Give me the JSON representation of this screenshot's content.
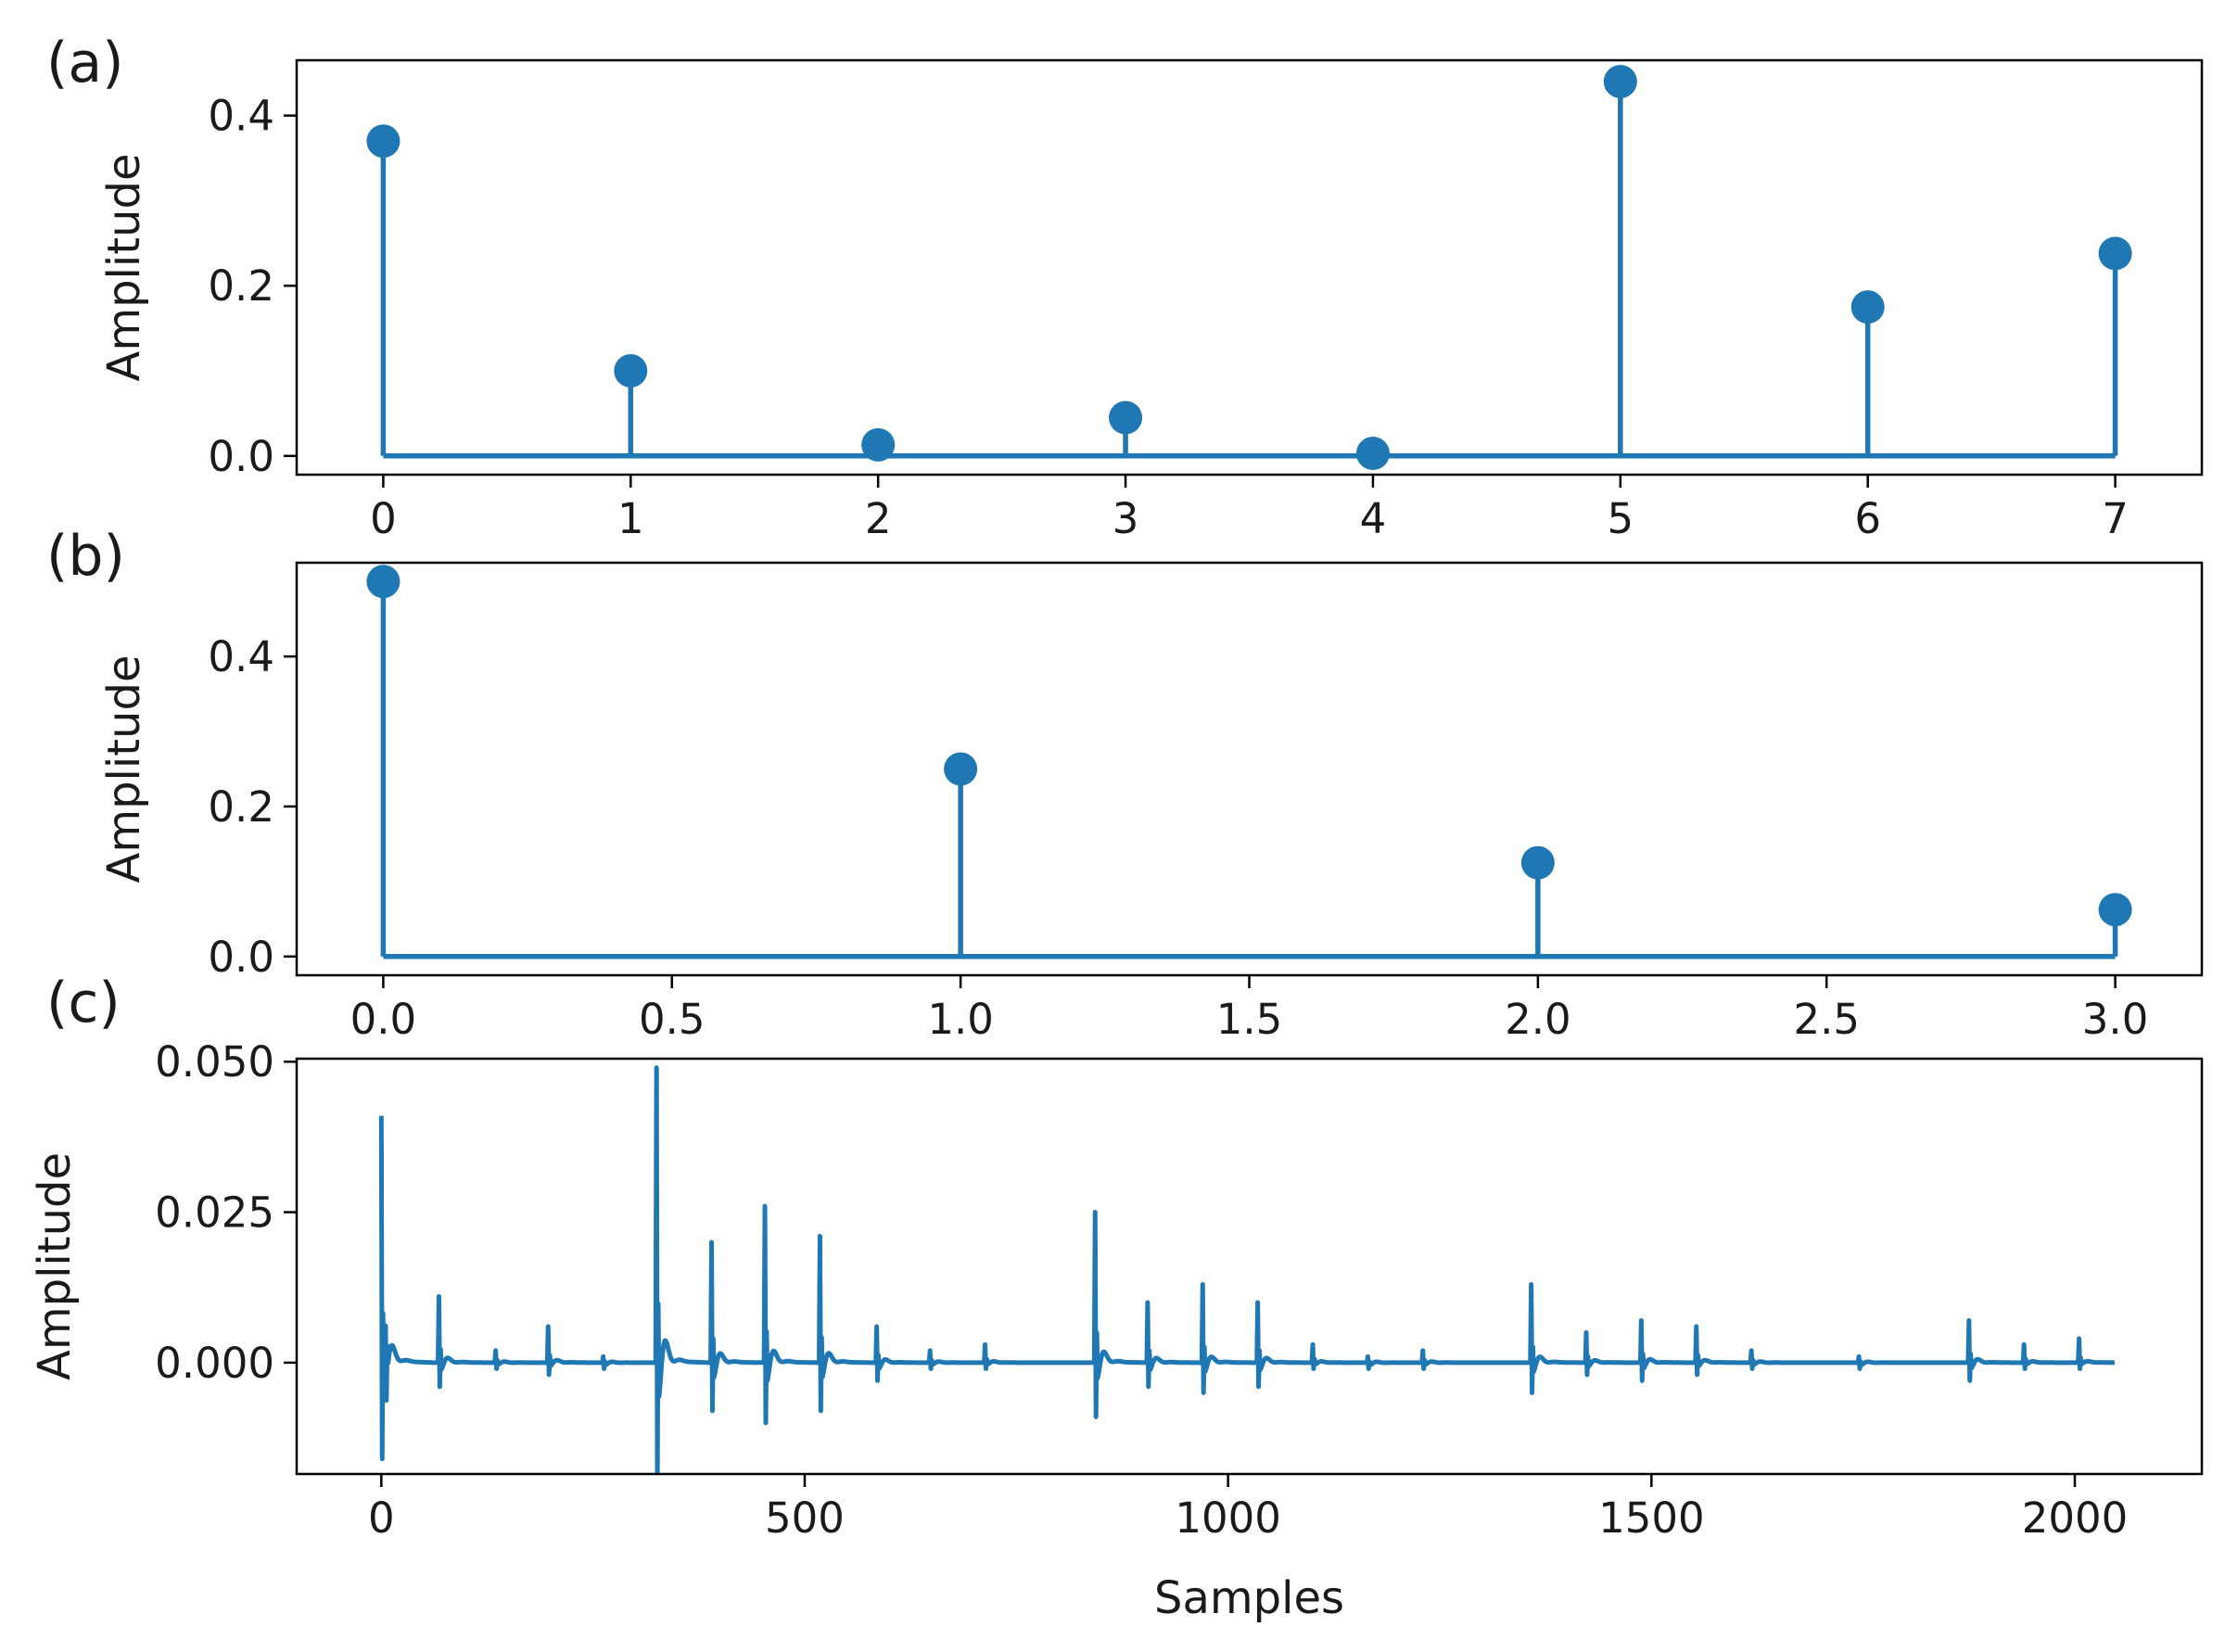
{
  "colors": {
    "series": "#1f77b4",
    "axes": "#000000",
    "text": "#1a1a1a",
    "background": "#ffffff"
  },
  "chart_data": [
    {
      "panel": "(a)",
      "type": "stem",
      "title": "",
      "xlabel": "",
      "ylabel": "Amplitude",
      "x": [
        0,
        1,
        2,
        3,
        4,
        5,
        6,
        7
      ],
      "values": [
        0.37,
        0.1,
        0.013,
        0.045,
        0.003,
        0.44,
        0.175,
        0.238
      ],
      "xlim": [
        -0.35,
        7.35
      ],
      "ylim": [
        -0.022,
        0.465
      ],
      "xticks": [
        0,
        1,
        2,
        3,
        4,
        5,
        6,
        7
      ],
      "xtick_labels": [
        "0",
        "1",
        "2",
        "3",
        "4",
        "5",
        "6",
        "7"
      ],
      "yticks": [
        0.0,
        0.2,
        0.4
      ],
      "ytick_labels": [
        "0.0",
        "0.2",
        "0.4"
      ],
      "grid": false,
      "legend": "none"
    },
    {
      "panel": "(b)",
      "type": "stem",
      "title": "",
      "xlabel": "",
      "ylabel": "Amplitude",
      "x": [
        0,
        1,
        2,
        3
      ],
      "values": [
        0.5,
        0.25,
        0.125,
        0.0625
      ],
      "xlim": [
        -0.15,
        3.15
      ],
      "ylim": [
        -0.025,
        0.525
      ],
      "xticks": [
        0.0,
        0.5,
        1.0,
        1.5,
        2.0,
        2.5,
        3.0
      ],
      "xtick_labels": [
        "0.0",
        "0.5",
        "1.0",
        "1.5",
        "2.0",
        "2.5",
        "3.0"
      ],
      "yticks": [
        0.0,
        0.2,
        0.4
      ],
      "ytick_labels": [
        "0.0",
        "0.2",
        "0.4"
      ],
      "grid": false,
      "legend": "none"
    },
    {
      "panel": "(c)",
      "type": "line",
      "title": "",
      "xlabel": "Samples",
      "ylabel": "Amplitude",
      "length": 2048,
      "spikes": [
        {
          "x": 0,
          "peak": 0.041,
          "trough": -0.016
        },
        {
          "x": 5,
          "peak": 0.008,
          "trough": -0.006
        },
        {
          "x": 68,
          "peak": 0.011,
          "trough": -0.004
        },
        {
          "x": 135,
          "peak": 0.002,
          "trough": -0.001
        },
        {
          "x": 197,
          "peak": 0.006,
          "trough": -0.002
        },
        {
          "x": 262,
          "peak": 0.001,
          "trough": -0.001
        },
        {
          "x": 325,
          "peak": 0.049,
          "trough": -0.019
        },
        {
          "x": 390,
          "peak": 0.02,
          "trough": -0.008
        },
        {
          "x": 453,
          "peak": 0.026,
          "trough": -0.01
        },
        {
          "x": 518,
          "peak": 0.021,
          "trough": -0.008
        },
        {
          "x": 585,
          "peak": 0.006,
          "trough": -0.003
        },
        {
          "x": 648,
          "peak": 0.002,
          "trough": -0.001
        },
        {
          "x": 713,
          "peak": 0.003,
          "trough": -0.001
        },
        {
          "x": 843,
          "peak": 0.025,
          "trough": -0.009
        },
        {
          "x": 905,
          "peak": 0.01,
          "trough": -0.004
        },
        {
          "x": 970,
          "peak": 0.013,
          "trough": -0.005
        },
        {
          "x": 1035,
          "peak": 0.01,
          "trough": -0.004
        },
        {
          "x": 1100,
          "peak": 0.003,
          "trough": -0.001
        },
        {
          "x": 1165,
          "peak": 0.001,
          "trough": -0.001
        },
        {
          "x": 1230,
          "peak": 0.002,
          "trough": -0.001
        },
        {
          "x": 1358,
          "peak": 0.013,
          "trough": -0.005
        },
        {
          "x": 1423,
          "peak": 0.005,
          "trough": -0.002
        },
        {
          "x": 1488,
          "peak": 0.007,
          "trough": -0.003
        },
        {
          "x": 1553,
          "peak": 0.006,
          "trough": -0.002
        },
        {
          "x": 1618,
          "peak": 0.002,
          "trough": -0.001
        },
        {
          "x": 1745,
          "peak": 0.001,
          "trough": -0.001
        },
        {
          "x": 1875,
          "peak": 0.007,
          "trough": -0.003
        },
        {
          "x": 1940,
          "peak": 0.003,
          "trough": -0.001
        },
        {
          "x": 2005,
          "peak": 0.004,
          "trough": -0.001
        }
      ],
      "xlim": [
        -100,
        2150
      ],
      "ylim": [
        -0.0185,
        0.0505
      ],
      "xticks": [
        0,
        500,
        1000,
        1500,
        2000
      ],
      "xtick_labels": [
        "0",
        "500",
        "1000",
        "1500",
        "2000"
      ],
      "yticks": [
        0.0,
        0.025,
        0.05
      ],
      "ytick_labels": [
        "0.000",
        "0.025",
        "0.050"
      ],
      "grid": false,
      "legend": "none"
    }
  ]
}
